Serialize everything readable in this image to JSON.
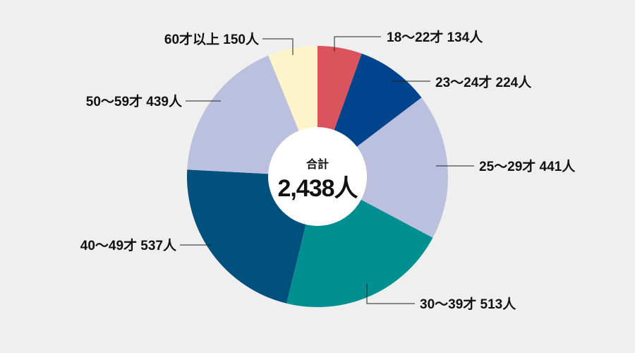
{
  "chart_data": {
    "type": "pie",
    "style": "donut",
    "unit": "人",
    "center": {
      "title": "合計",
      "value": "2,438人",
      "total": 2438
    },
    "slices": [
      {
        "label": "18～22才 134人",
        "category": "18～22才",
        "value": 134,
        "color": "#d9545c"
      },
      {
        "label": "23～24才 224人",
        "category": "23～24才",
        "value": 224,
        "color": "#00448e"
      },
      {
        "label": "25～29才 441人",
        "category": "25～29才",
        "value": 441,
        "color": "#bcc0df"
      },
      {
        "label": "30～39才 513人",
        "category": "30～39才",
        "value": 513,
        "color": "#008f91"
      },
      {
        "label": "40～49才 537人",
        "category": "40～49才",
        "value": 537,
        "color": "#00507d"
      },
      {
        "label": "50～59才 439人",
        "category": "50～59才",
        "value": 439,
        "color": "#bcc0df"
      },
      {
        "label": "60才以上 150人",
        "category": "60才以上",
        "value": 150,
        "color": "#fdf5c9"
      }
    ],
    "background_color": "#efefef"
  }
}
